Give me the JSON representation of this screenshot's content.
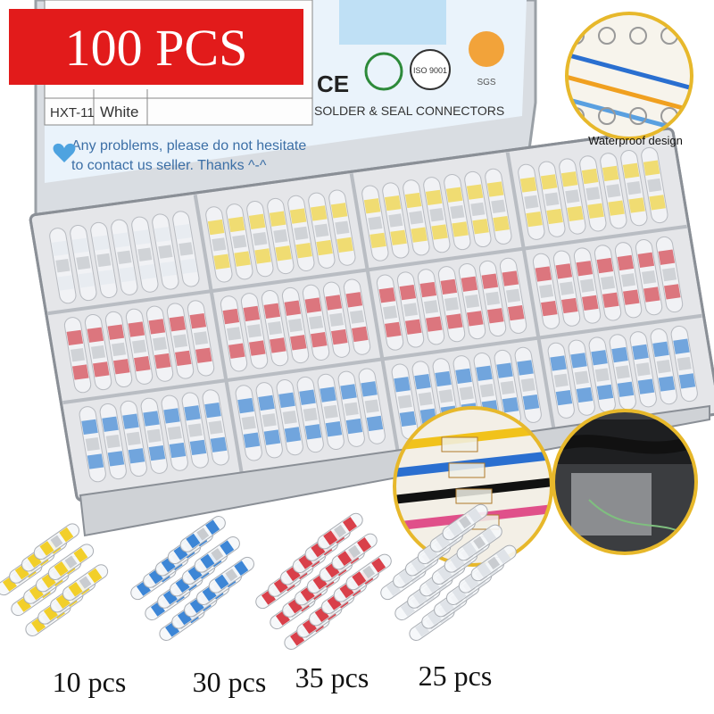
{
  "badge": "100 PCS",
  "lid": {
    "model": "HXT-11",
    "color": "White",
    "note": [
      "Any problems, please do not hesitate",
      "to contact us seller. Thanks ^-^"
    ],
    "marks": [
      "CE",
      "ISO 9001",
      "SGS"
    ],
    "product": "SOLDER & SEAL CONNECTORS"
  },
  "insets": {
    "caption": "Waterproof design"
  },
  "kits": [
    {
      "label": "10 pcs"
    },
    {
      "label": "30 pcs"
    },
    {
      "label": "35 pcs"
    },
    {
      "label": "25 pcs"
    }
  ]
}
